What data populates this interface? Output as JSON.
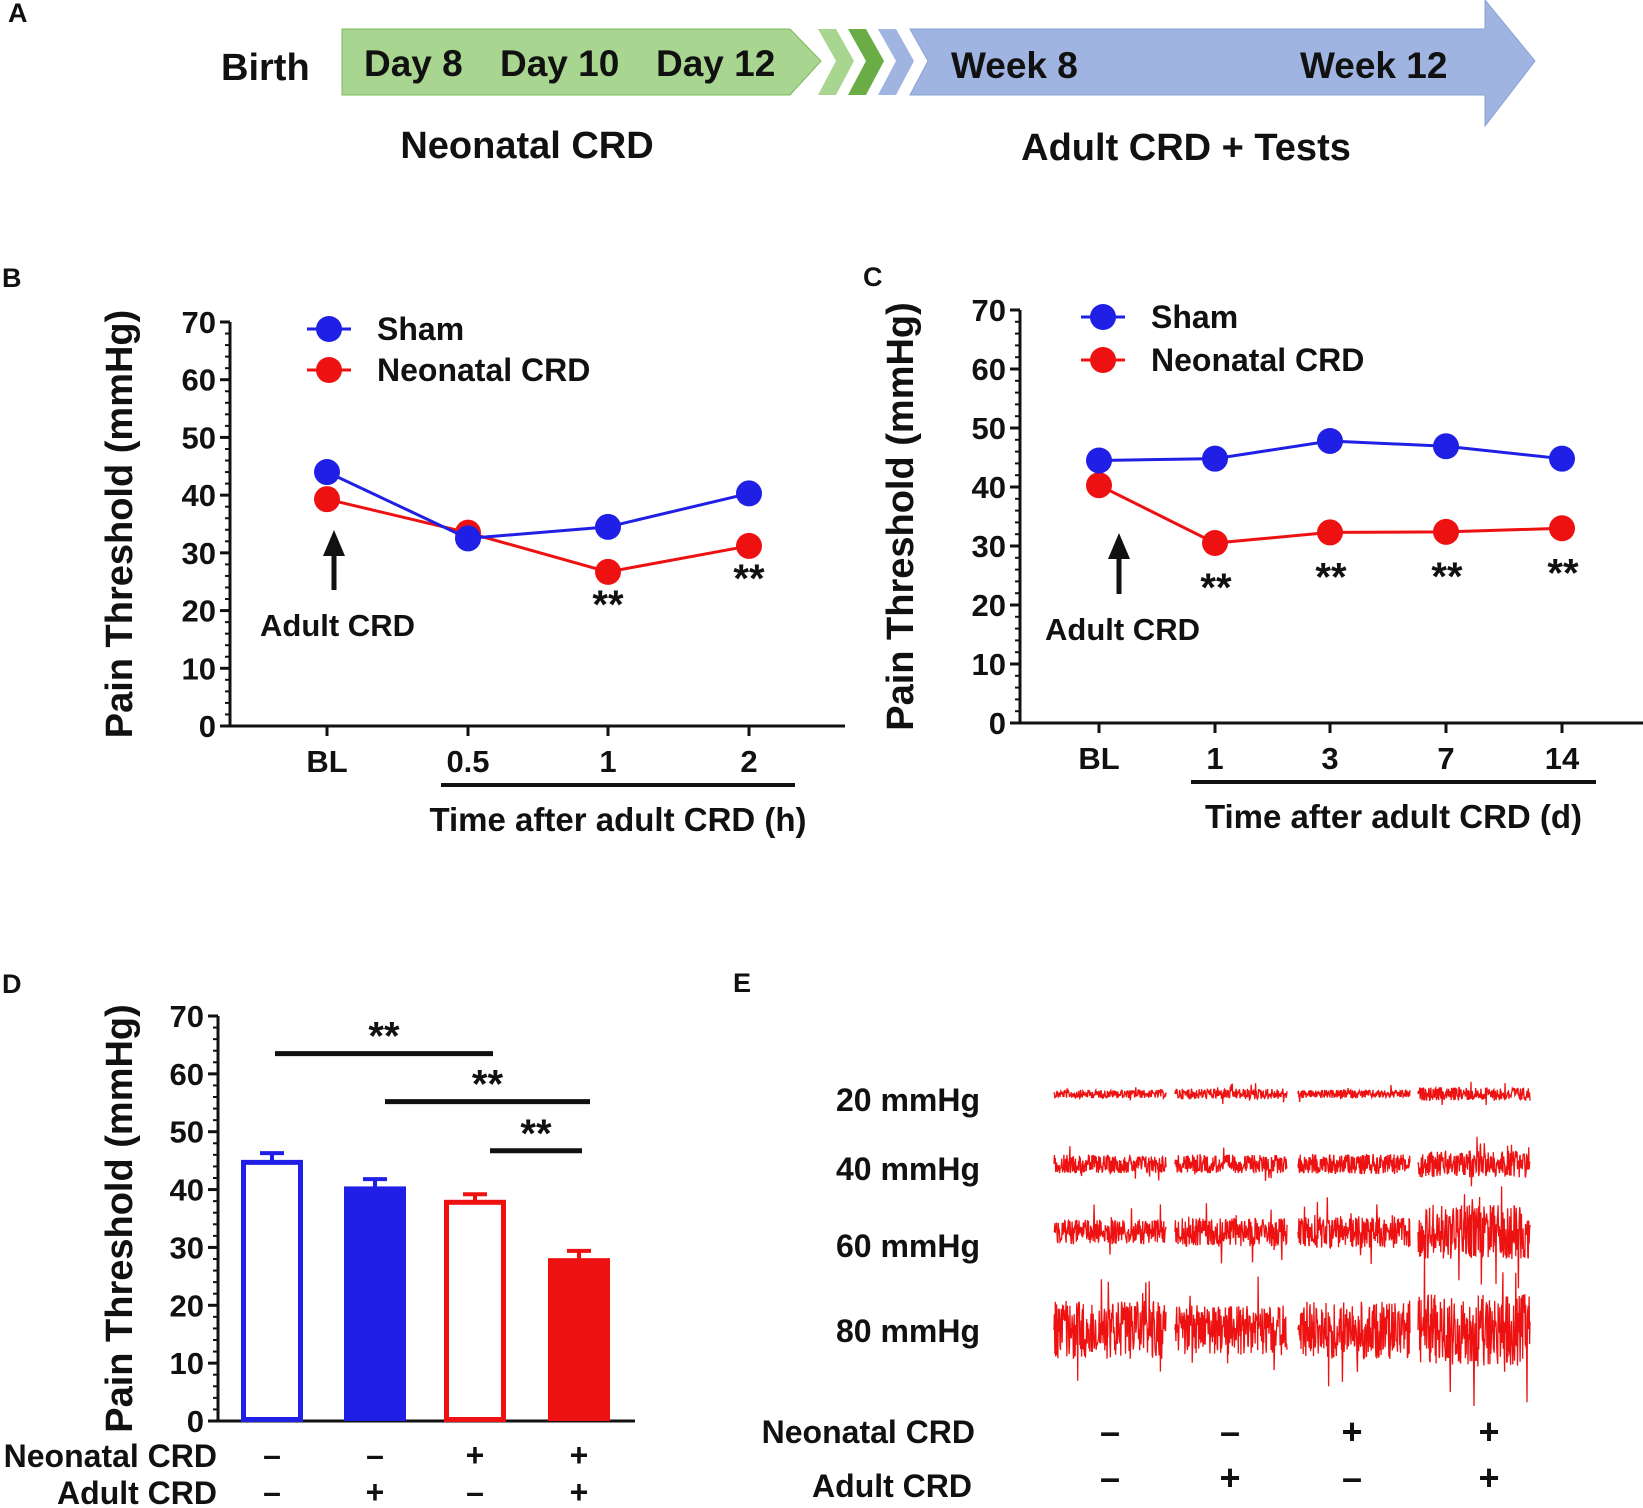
{
  "colors": {
    "sham": "#1f1fe6",
    "neonatal": "#ee1111",
    "green_light": "#a8d690",
    "green_dark": "#6aac46",
    "green_border": "#7cb85c",
    "blue_light": "#9fb4e0",
    "blue_border": "#8aa2d6"
  },
  "panel_labels": {
    "a": "A",
    "b": "B",
    "c": "C",
    "d": "D",
    "e": "E"
  },
  "timeline": {
    "birth": "Birth",
    "days": [
      "Day 8",
      "Day 10",
      "Day 12"
    ],
    "weeks": [
      "Week 8",
      "Week 12"
    ],
    "neonatal_label": "Neonatal CRD",
    "adult_label": "Adult CRD + Tests"
  },
  "chart_data": [
    {
      "id": "B",
      "type": "line",
      "ylabel": "Pain Threshold (mmHg)",
      "xlabel": "Time after adult CRD (h)",
      "ylim": [
        0,
        70
      ],
      "yticks": [
        0,
        10,
        20,
        30,
        40,
        50,
        60,
        70
      ],
      "categories": [
        "BL",
        "0.5",
        "1",
        "2"
      ],
      "series": [
        {
          "name": "Sham",
          "values": [
            44,
            32.5,
            34.5,
            40.3
          ],
          "errors": [
            1.2,
            0.8,
            1.5,
            1.2
          ]
        },
        {
          "name": "Neonatal CRD",
          "values": [
            39.3,
            33.5,
            26.7,
            31.2
          ],
          "errors": [
            0.8,
            0.8,
            0.8,
            1.4
          ]
        }
      ],
      "significance": [
        "",
        "",
        "**",
        "**"
      ],
      "annotation": "Adult CRD",
      "legend_position": "top-left"
    },
    {
      "id": "C",
      "type": "line",
      "ylabel": "Pain Threshold (mmHg)",
      "xlabel": "Time after adult CRD (d)",
      "ylim": [
        0,
        70
      ],
      "yticks": [
        0,
        10,
        20,
        30,
        40,
        50,
        60,
        70
      ],
      "categories": [
        "BL",
        "1",
        "3",
        "7",
        "14"
      ],
      "series": [
        {
          "name": "Sham",
          "values": [
            44.5,
            44.8,
            47.8,
            46.9,
            44.8
          ],
          "errors": [
            0.6,
            0.8,
            1.6,
            1.0,
            0.7
          ]
        },
        {
          "name": "Neonatal CRD",
          "values": [
            40.3,
            30.5,
            32.3,
            32.4,
            33
          ],
          "errors": [
            1.2,
            1.0,
            0.7,
            0.8,
            0.7
          ]
        }
      ],
      "significance": [
        "",
        "**",
        "**",
        "**",
        "**"
      ],
      "annotation": "Adult CRD",
      "legend_position": "top-left"
    },
    {
      "id": "D",
      "type": "bar",
      "ylabel": "Pain Threshold (mmHg)",
      "ylim": [
        0,
        70
      ],
      "yticks": [
        0,
        10,
        20,
        30,
        40,
        50,
        60,
        70
      ],
      "row_labels": [
        "Neonatal CRD",
        "Adult CRD"
      ],
      "bars": [
        {
          "value": 44.7,
          "error": 1.6,
          "group": "Sham",
          "fill": "open",
          "neonatal": "–",
          "adult": "–"
        },
        {
          "value": 40.2,
          "error": 1.6,
          "group": "Sham",
          "fill": "solid",
          "neonatal": "–",
          "adult": "+"
        },
        {
          "value": 37.8,
          "error": 1.4,
          "group": "Neonatal CRD",
          "fill": "open",
          "neonatal": "+",
          "adult": "–"
        },
        {
          "value": 27.8,
          "error": 1.6,
          "group": "Neonatal CRD",
          "fill": "solid",
          "neonatal": "+",
          "adult": "+"
        }
      ],
      "brackets": [
        {
          "from": 0,
          "to": 2,
          "label": "**",
          "level": 63.5
        },
        {
          "from": 1,
          "to": 3,
          "label": "**",
          "level": 55.2
        },
        {
          "from": 2,
          "to": 3,
          "label": "**",
          "level": 46.7
        }
      ]
    }
  ],
  "panel_e": {
    "pressures": [
      "20 mmHg",
      "40 mmHg",
      "60 mmHg",
      "80 mmHg"
    ],
    "amplitudes": [
      [
        1,
        1.3,
        1,
        1.6
      ],
      [
        2.2,
        2.2,
        2.4,
        3.2
      ],
      [
        3,
        3.4,
        3.8,
        6.5
      ],
      [
        7,
        6,
        7,
        8.5
      ]
    ],
    "row_labels": [
      "Neonatal CRD",
      "Adult CRD"
    ],
    "neonatal": [
      "–",
      "–",
      "+",
      "+"
    ],
    "adult": [
      "–",
      "+",
      "–",
      "+"
    ]
  }
}
